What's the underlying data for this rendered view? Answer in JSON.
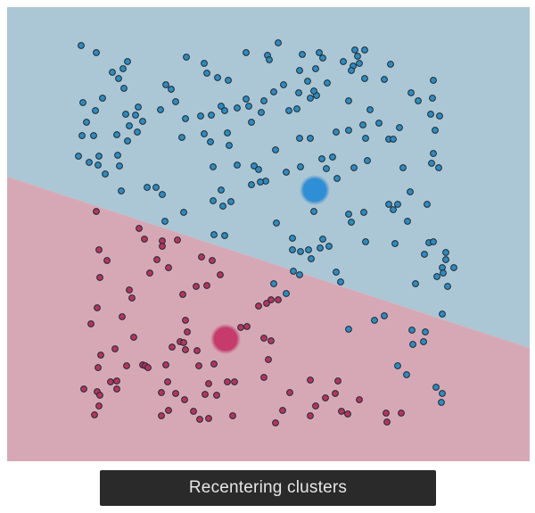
{
  "status": {
    "label": "Recentering clusters"
  },
  "colors": {
    "blue_region": "#abc6d4",
    "pink_region": "#d6a8b5",
    "blue_point": "#2e8bc0",
    "pink_point": "#b5345f",
    "point_stroke": "#1d2a33",
    "centroid_blue": "#2f8fd6",
    "centroid_pink": "#c63a6c"
  },
  "clusters": [
    {
      "name": "blue",
      "centroid": [
        353,
        213
      ],
      "points": [
        [
          91,
          51
        ],
        [
          108,
          59
        ],
        [
          143,
          69
        ],
        [
          126,
          81
        ],
        [
          138,
          77
        ],
        [
          133,
          88
        ],
        [
          139,
          99
        ],
        [
          93,
          115
        ],
        [
          115,
          110
        ],
        [
          107,
          124
        ],
        [
          97,
          137
        ],
        [
          92,
          152
        ],
        [
          105,
          152
        ],
        [
          131,
          151
        ],
        [
          88,
          175
        ],
        [
          100,
          182
        ],
        [
          111,
          175
        ],
        [
          110,
          185
        ],
        [
          118,
          195
        ],
        [
          132,
          174
        ],
        [
          134,
          186
        ],
        [
          136,
          214
        ],
        [
          165,
          210
        ],
        [
          175,
          210
        ],
        [
          182,
          218
        ],
        [
          209,
          64
        ],
        [
          229,
          71
        ],
        [
          232,
          82
        ],
        [
          244,
          87
        ],
        [
          256,
          90
        ],
        [
          186,
          95
        ],
        [
          192,
          100
        ],
        [
          197,
          114
        ],
        [
          155,
          120
        ],
        [
          152,
          129
        ],
        [
          141,
          128
        ],
        [
          145,
          141
        ],
        [
          160,
          136
        ],
        [
          154,
          148
        ],
        [
          143,
          158
        ],
        [
          180,
          123
        ],
        [
          208,
          133
        ],
        [
          225,
          130
        ],
        [
          237,
          129
        ],
        [
          248,
          119
        ],
        [
          252,
          124
        ],
        [
          266,
          121
        ],
        [
          276,
          111
        ],
        [
          279,
          119
        ],
        [
          282,
          137
        ],
        [
          293,
          126
        ],
        [
          296,
          113
        ],
        [
          307,
          103
        ],
        [
          318,
          95
        ],
        [
          335,
          104
        ],
        [
          324,
          124
        ],
        [
          333,
          122
        ],
        [
          276,
          59
        ],
        [
          300,
          62
        ],
        [
          302,
          67
        ],
        [
          312,
          48
        ],
        [
          336,
          79
        ],
        [
          339,
          61
        ],
        [
          358,
          59
        ],
        [
          362,
          65
        ],
        [
          354,
          77
        ],
        [
          345,
          91
        ],
        [
          348,
          110
        ],
        [
          355,
          107
        ],
        [
          352,
          102
        ],
        [
          367,
          93
        ],
        [
          385,
          69
        ],
        [
          396,
          74
        ],
        [
          398,
          56
        ],
        [
          409,
          56
        ],
        [
          401,
          63
        ],
        [
          403,
          71
        ],
        [
          394,
          79
        ],
        [
          438,
          72
        ],
        [
          409,
          88
        ],
        [
          431,
          89
        ],
        [
          391,
          113
        ],
        [
          415,
          123
        ],
        [
          448,
          143
        ],
        [
          461,
          104
        ],
        [
          469,
          113
        ],
        [
          485,
          110
        ],
        [
          486,
          90
        ],
        [
          483,
          128
        ],
        [
          493,
          130
        ],
        [
          488,
          146
        ],
        [
          229,
          150
        ],
        [
          236,
          159
        ],
        [
          255,
          149
        ],
        [
          257,
          163
        ],
        [
          239,
          187
        ],
        [
          266,
          185
        ],
        [
          204,
          154
        ],
        [
          285,
          186
        ],
        [
          290,
          190
        ],
        [
          298,
          203
        ],
        [
          292,
          204
        ],
        [
          282,
          207
        ],
        [
          309,
          168
        ],
        [
          321,
          193
        ],
        [
          337,
          187
        ],
        [
          336,
          155
        ],
        [
          348,
          155
        ],
        [
          361,
          178
        ],
        [
          366,
          189
        ],
        [
          373,
          176
        ],
        [
          378,
          200
        ],
        [
          377,
          148
        ],
        [
          391,
          146
        ],
        [
          407,
          140
        ],
        [
          410,
          155
        ],
        [
          425,
          138
        ],
        [
          436,
          156
        ],
        [
          441,
          156
        ],
        [
          397,
          188
        ],
        [
          412,
          180
        ],
        [
          452,
          188
        ],
        [
          486,
          172
        ],
        [
          484,
          183
        ],
        [
          492,
          188
        ],
        [
          239,
          225
        ],
        [
          248,
          213
        ],
        [
          250,
          231
        ],
        [
          259,
          226
        ],
        [
          185,
          248
        ],
        [
          206,
          238
        ],
        [
          240,
          263
        ],
        [
          252,
          264
        ],
        [
          352,
          237
        ],
        [
          310,
          250
        ],
        [
          328,
          267
        ],
        [
          337,
          282
        ],
        [
          328,
          280
        ],
        [
          346,
          280
        ],
        [
          349,
          290
        ],
        [
          359,
          278
        ],
        [
          362,
          268
        ],
        [
          369,
          276
        ],
        [
          391,
          240
        ],
        [
          408,
          238
        ],
        [
          394,
          249
        ],
        [
          410,
          271
        ],
        [
          436,
          229
        ],
        [
          441,
          235
        ],
        [
          446,
          229
        ],
        [
          443,
          273
        ],
        [
          457,
          248
        ],
        [
          460,
          215
        ],
        [
          479,
          229
        ],
        [
          481,
          272
        ],
        [
          476,
          285
        ],
        [
          486,
          271
        ],
        [
          496,
          300
        ],
        [
          500,
          291
        ],
        [
          500,
          283
        ],
        [
          329,
          304
        ],
        [
          336,
          308
        ],
        [
          321,
          329
        ],
        [
          307,
          318
        ],
        [
          377,
          305
        ],
        [
          382,
          316
        ],
        [
          497,
          306
        ],
        [
          490,
          310
        ],
        [
          509,
          300
        ],
        [
          502,
          321
        ],
        [
          466,
          318
        ],
        [
          496,
          352
        ],
        [
          420,
          359
        ],
        [
          431,
          354
        ],
        [
          462,
          370
        ],
        [
          477,
          372
        ],
        [
          475,
          383
        ],
        [
          463,
          386
        ],
        [
          391,
          369
        ],
        [
          446,
          410
        ],
        [
          456,
          420
        ],
        [
          489,
          434
        ],
        [
          496,
          441
        ],
        [
          495,
          451
        ]
      ]
    },
    {
      "name": "pink",
      "centroid": [
        253,
        380
      ],
      "points": [
        [
          108,
          237
        ],
        [
          156,
          256
        ],
        [
          162,
          268
        ],
        [
          182,
          270
        ],
        [
          182,
          276
        ],
        [
          199,
          269
        ],
        [
          111,
          280
        ],
        [
          120,
          292
        ],
        [
          176,
          291
        ],
        [
          189,
          300
        ],
        [
          168,
          306
        ],
        [
          112,
          311
        ],
        [
          145,
          325
        ],
        [
          148,
          334
        ],
        [
          109,
          345
        ],
        [
          102,
          363
        ],
        [
          137,
          355
        ],
        [
          150,
          378
        ],
        [
          129,
          391
        ],
        [
          113,
          398
        ],
        [
          110,
          412
        ],
        [
          142,
          410
        ],
        [
          160,
          409
        ],
        [
          163,
          410
        ],
        [
          166,
          412
        ],
        [
          186,
          409
        ],
        [
          205,
          330
        ],
        [
          220,
          321
        ],
        [
          226,
          288
        ],
        [
          238,
          292
        ],
        [
          247,
          308
        ],
        [
          232,
          320
        ],
        [
          208,
          359
        ],
        [
          290,
          343
        ],
        [
          299,
          340
        ],
        [
          304,
          336
        ],
        [
          312,
          336
        ],
        [
          277,
          366
        ],
        [
          270,
          367
        ],
        [
          296,
          379
        ],
        [
          304,
          382
        ],
        [
          210,
          372
        ],
        [
          202,
          383
        ],
        [
          206,
          384
        ],
        [
          193,
          389
        ],
        [
          208,
          392
        ],
        [
          221,
          393
        ],
        [
          301,
          403
        ],
        [
          240,
          408
        ],
        [
          223,
          410
        ],
        [
          255,
          428
        ],
        [
          263,
          428
        ],
        [
          234,
          430
        ],
        [
          243,
          443
        ],
        [
          230,
          442
        ],
        [
          188,
          428
        ],
        [
          181,
          440
        ],
        [
          197,
          441
        ],
        [
          207,
          448
        ],
        [
          94,
          436
        ],
        [
          109,
          439
        ],
        [
          112,
          443
        ],
        [
          124,
          428
        ],
        [
          131,
          427
        ],
        [
          131,
          436
        ],
        [
          111,
          455
        ],
        [
          106,
          465
        ],
        [
          181,
          466
        ],
        [
          189,
          460
        ],
        [
          217,
          461
        ],
        [
          224,
          470
        ],
        [
          234,
          469
        ],
        [
          261,
          466
        ],
        [
          296,
          423
        ],
        [
          325,
          440
        ],
        [
          348,
          426
        ],
        [
          365,
          446
        ],
        [
          379,
          427
        ],
        [
          376,
          441
        ],
        [
          354,
          455
        ],
        [
          309,
          474
        ],
        [
          317,
          460
        ],
        [
          348,
          466
        ],
        [
          383,
          461
        ],
        [
          390,
          464
        ],
        [
          403,
          448
        ],
        [
          433,
          463
        ],
        [
          434,
          473
        ],
        [
          450,
          463
        ]
      ]
    }
  ]
}
